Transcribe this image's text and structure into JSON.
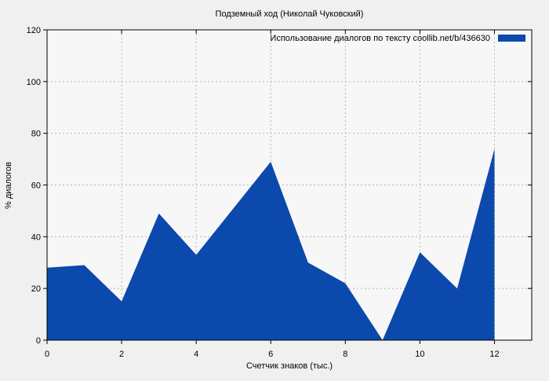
{
  "colors": {
    "background": "#f0f0f0",
    "plot_background": "#f7f7f7",
    "grid": "#b5b5b5",
    "border": "#000000",
    "series_fill": "#0c49ac",
    "text": "#000000"
  },
  "chart_data": {
    "type": "area",
    "title": "Подземный ход (Николай Чуковский)",
    "legend": "Использование диалогов по тексту  coollib.net/b/436630",
    "xlabel": "Счетчик знаков (тыс.)",
    "ylabel": "% диалогов",
    "x": [
      0,
      1,
      2,
      3,
      4,
      5,
      6,
      7,
      8,
      9,
      10,
      11,
      12
    ],
    "values": [
      28,
      29,
      15,
      49,
      33,
      51,
      69,
      30,
      22,
      0,
      34,
      20,
      74
    ],
    "xlim": [
      0,
      13
    ],
    "ylim": [
      0,
      120
    ],
    "xticks": [
      0,
      2,
      4,
      6,
      8,
      10,
      12
    ],
    "yticks": [
      0,
      20,
      40,
      60,
      80,
      100,
      120
    ],
    "grid": true,
    "grid_style": "dashed",
    "legend_position": "top-right"
  }
}
